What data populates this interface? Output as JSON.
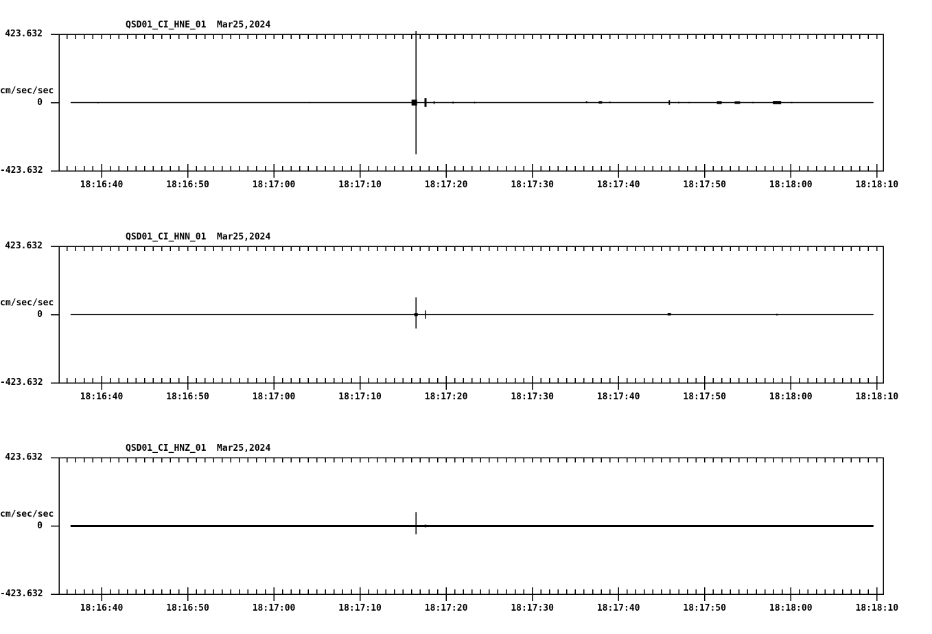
{
  "meta": {
    "background_color": "#ffffff",
    "ink_color": "#000000"
  },
  "time_axis": {
    "tick_labels": [
      "18:16:40",
      "18:16:50",
      "18:17:00",
      "18:17:10",
      "18:17:20",
      "18:17:30",
      "18:17:40",
      "18:17:50",
      "18:18:00",
      "18:18:10"
    ],
    "major_interval_s": 10,
    "minor_interval_s": 1,
    "axis_start_offset_s": -4.9,
    "axis_end_offset_s": 90.7
  },
  "chart_data": [
    {
      "type": "line",
      "title": "QSD01_CI_HNE_01  Mar25,2024",
      "ylabel": "cm/sec/sec",
      "ylim": [
        -423.632,
        423.632
      ],
      "ytick_labels": {
        "top": "423.632",
        "zero": "0",
        "bottom": "-423.632"
      },
      "grid": "off",
      "trace": {
        "start_s": -3.6,
        "end_s": 89.6,
        "baseline_value": 0,
        "weight": "normal",
        "spikes": [
          {
            "t": -0.4,
            "up": 0,
            "down": -5,
            "w": 1
          },
          {
            "t": 24.1,
            "up": 3,
            "down": -4,
            "w": 1
          },
          {
            "t": 36.3,
            "up": 18,
            "down": -18,
            "w": 8
          },
          {
            "t": 36.5,
            "up": 445,
            "down": -321,
            "w": 1.5
          },
          {
            "t": 37.6,
            "up": 27,
            "down": -27,
            "w": 3
          },
          {
            "t": 38.6,
            "up": 9,
            "down": -9,
            "w": 1.5
          },
          {
            "t": 40.8,
            "up": 6,
            "down": -6,
            "w": 1.5
          },
          {
            "t": 43.3,
            "up": 5,
            "down": -5,
            "w": 1.5
          },
          {
            "t": 56.3,
            "up": 9,
            "down": -3,
            "w": 2
          },
          {
            "t": 57.9,
            "up": 9,
            "down": -6,
            "w": 5
          },
          {
            "t": 59.0,
            "up": 6,
            "down": -3,
            "w": 2
          },
          {
            "t": 65.9,
            "up": 14,
            "down": -14,
            "w": 2
          },
          {
            "t": 67.0,
            "up": 5,
            "down": -5,
            "w": 1.5
          },
          {
            "t": 68.2,
            "up": 4,
            "down": -4,
            "w": 1.5
          },
          {
            "t": 71.7,
            "up": 9,
            "down": -9,
            "w": 7
          },
          {
            "t": 73.8,
            "up": 8,
            "down": -8,
            "w": 8
          },
          {
            "t": 75.6,
            "up": 4,
            "down": -4,
            "w": 2
          },
          {
            "t": 78.4,
            "up": 10,
            "down": -10,
            "w": 12
          },
          {
            "t": 80.1,
            "up": 4,
            "down": -4,
            "w": 2
          }
        ]
      }
    },
    {
      "type": "line",
      "title": "QSD01_CI_HNN_01  Mar25,2024",
      "ylabel": "cm/sec/sec",
      "ylim": [
        -423.632,
        423.632
      ],
      "ytick_labels": {
        "top": "423.632",
        "zero": "0",
        "bottom": "-423.632"
      },
      "grid": "off",
      "trace": {
        "start_s": -3.6,
        "end_s": 89.6,
        "baseline_value": 0,
        "weight": "thin",
        "spikes": [
          {
            "t": 36.5,
            "up": 107,
            "down": -86,
            "w": 1.5
          },
          {
            "t": 36.5,
            "up": 10,
            "down": -10,
            "w": 5
          },
          {
            "t": 37.6,
            "up": 26,
            "down": -26,
            "w": 1.5
          },
          {
            "t": 65.9,
            "up": 10,
            "down": -5,
            "w": 5
          },
          {
            "t": 78.4,
            "up": 5,
            "down": -5,
            "w": 2
          }
        ]
      }
    },
    {
      "type": "line",
      "title": "QSD01_CI_HNZ_01  Mar25,2024",
      "ylabel": "cm/sec/sec",
      "ylim": [
        -423.632,
        423.632
      ],
      "ytick_labels": {
        "top": "423.632",
        "zero": "0",
        "bottom": "-423.632"
      },
      "grid": "off",
      "trace": {
        "start_s": -3.6,
        "end_s": 89.6,
        "baseline_value": 0,
        "weight": "thick",
        "spikes": [
          {
            "t": 36.5,
            "up": 86,
            "down": -51,
            "w": 1.5
          },
          {
            "t": 37.6,
            "up": 8,
            "down": -8,
            "w": 2.5
          }
        ]
      }
    }
  ]
}
